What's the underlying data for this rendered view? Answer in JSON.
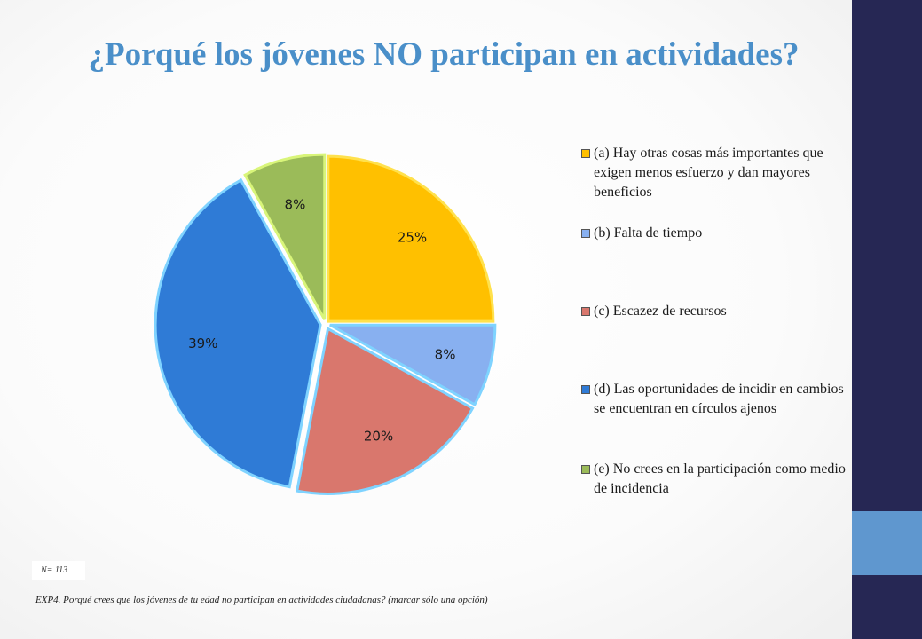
{
  "title": "¿Porqué los jóvenes NO participan en actividades?",
  "chart_data": {
    "type": "pie",
    "slices": [
      {
        "label": "(a) Hay otras cosas más importantes que exigen menos esfuerzo y dan mayores beneficios",
        "value": 25,
        "display": "25%",
        "color": "#ffc000"
      },
      {
        "label": "(b) Falta de tiempo",
        "value": 8,
        "display": "8%",
        "color": "#88b0f0"
      },
      {
        "label": "(c) Escazez de recursos",
        "value": 20,
        "display": "20%",
        "color": "#d9776d"
      },
      {
        "label": "(d) Las oportunidades de incidir en cambios se encuentran en círculos ajenos",
        "value": 39,
        "display": "39%",
        "color": "#2f7bd6"
      },
      {
        "label": "(e) No crees en la participación como medio de incidencia",
        "value": 8,
        "display": "8%",
        "color": "#9bbb59"
      }
    ],
    "legend_position": "right"
  },
  "legend": [
    "(a) Hay otras cosas más importantes que exigen menos esfuerzo y dan mayores beneficios",
    "(b) Falta de tiempo",
    "(c) Escazez de recursos",
    "(d) Las oportunidades de incidir en cambios se encuentran en círculos ajenos",
    "(e) No crees en la participación como medio de incidencia"
  ],
  "sample": "N= 113",
  "footnote": "EXP4. Porqué crees que los jóvenes de tu edad no participan en actividades ciudadanas? (marcar sólo una opción)"
}
